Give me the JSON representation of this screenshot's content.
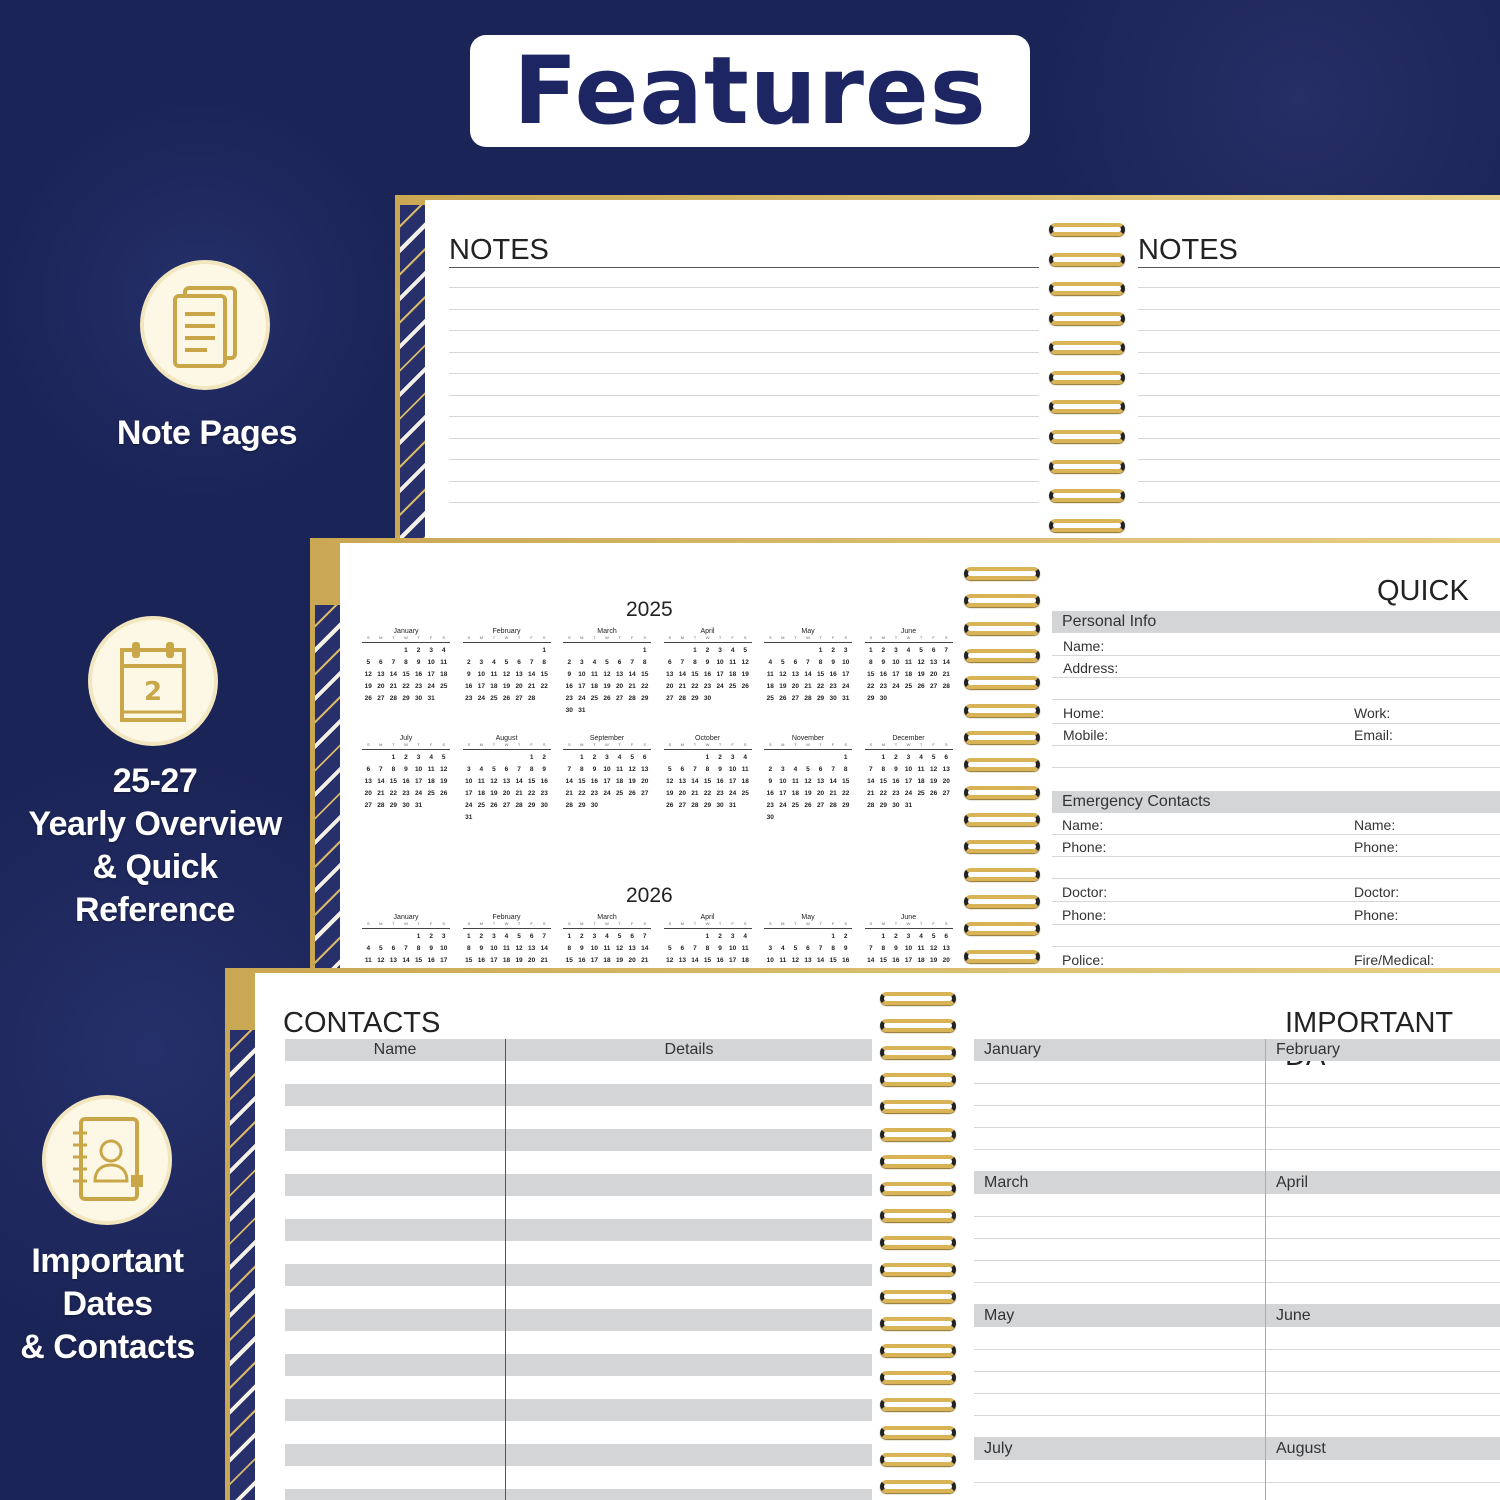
{
  "title": "Features",
  "features": [
    {
      "label": "Note Pages",
      "icon": "note-pages-icon"
    },
    {
      "label": "25-27 Yearly Overview & Quick Reference",
      "lines": [
        "25-27",
        "Yearly Overview",
        "& Quick",
        "Reference"
      ],
      "icon": "calendar-icon",
      "icon_text": "2"
    },
    {
      "label": "Important Dates & Contacts",
      "lines": [
        "Important",
        "Dates",
        "& Contacts"
      ],
      "icon": "contact-book-icon"
    }
  ],
  "colors": {
    "background": "#1b2456",
    "title": "#1d2663",
    "gold": "#d8b457",
    "row_grey": "#d4d5d7"
  },
  "notes": {
    "left_title": "NOTES",
    "right_title": "NOTES"
  },
  "calendar": {
    "weekdays": [
      "S",
      "M",
      "T",
      "W",
      "T",
      "F",
      "S"
    ],
    "years": [
      {
        "year": "2025",
        "months": [
          {
            "name": "January",
            "start": 3,
            "days": 31
          },
          {
            "name": "February",
            "start": 6,
            "days": 28
          },
          {
            "name": "March",
            "start": 6,
            "days": 31
          },
          {
            "name": "April",
            "start": 2,
            "days": 30
          },
          {
            "name": "May",
            "start": 4,
            "days": 31
          },
          {
            "name": "June",
            "start": 0,
            "days": 30
          },
          {
            "name": "July",
            "start": 2,
            "days": 31
          },
          {
            "name": "August",
            "start": 5,
            "days": 31
          },
          {
            "name": "September",
            "start": 1,
            "days": 30
          },
          {
            "name": "October",
            "start": 3,
            "days": 31
          },
          {
            "name": "November",
            "start": 6,
            "days": 30
          },
          {
            "name": "December",
            "start": 1,
            "days": 31
          }
        ]
      },
      {
        "year": "2026",
        "months": [
          {
            "name": "January",
            "start": 4,
            "days": 31
          },
          {
            "name": "February",
            "start": 0,
            "days": 28
          },
          {
            "name": "March",
            "start": 0,
            "days": 31
          },
          {
            "name": "April",
            "start": 3,
            "days": 30
          },
          {
            "name": "May",
            "start": 5,
            "days": 31
          },
          {
            "name": "June",
            "start": 1,
            "days": 30
          }
        ]
      }
    ]
  },
  "quick_ref": {
    "title": "QUICK RI",
    "personal": {
      "header": "Personal Info",
      "name": "Name:",
      "address": "Address:",
      "home": "Home:",
      "work": "Work:",
      "mobile": "Mobile:",
      "email": "Email:"
    },
    "emergency": {
      "header": "Emergency Contacts",
      "name1": "Name:",
      "name2": "Name:",
      "phone1": "Phone:",
      "phone2": "Phone:",
      "doctor1": "Doctor:",
      "doctor2": "Doctor:",
      "phone3": "Phone:",
      "phone4": "Phone:",
      "police": "Police:",
      "fire": "Fire/Medical:"
    }
  },
  "contacts": {
    "title": "CONTACTS",
    "col_name": "Name",
    "col_details": "Details"
  },
  "important_dates": {
    "title": "IMPORTANT DA",
    "months": [
      "January",
      "February",
      "March",
      "April",
      "May",
      "June",
      "July",
      "August"
    ]
  }
}
